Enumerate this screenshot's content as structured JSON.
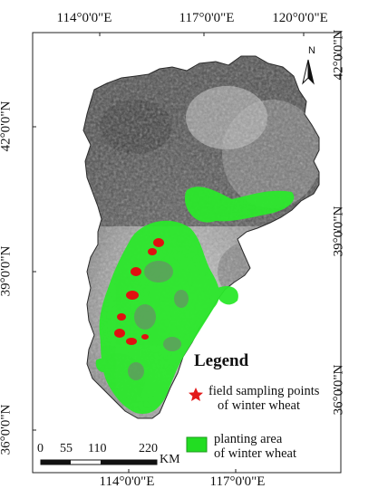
{
  "map": {
    "top_labels": [
      "114°0'0\"E",
      "117°0'0\"E",
      "120°0'0\"E"
    ],
    "bottom_labels": [
      "114°0'0\"E",
      "117°0'0\"E"
    ],
    "left_labels": [
      "42°0'0\"N",
      "39°0'0\"N",
      "36°0'0\"N"
    ],
    "right_labels": [
      "42°0'0\"N",
      "39°0'0\"N",
      "36°0'0\"N"
    ],
    "north_arrow": "N"
  },
  "legend": {
    "title": "Legend",
    "items": [
      {
        "icon": "red-star-icon",
        "color": "#e31b1b",
        "line1": "field sampling points",
        "line2": "of winter wheat"
      },
      {
        "icon": "green-square-icon",
        "color": "#22dd22",
        "line1": "planting area",
        "line2": "of winter wheat"
      }
    ]
  },
  "scale_bar": {
    "ticks": [
      "0",
      "55",
      "110",
      "220"
    ],
    "unit": "KM"
  },
  "colors": {
    "wheat": "#2be82b",
    "sample": "#e01010",
    "land_dark": "#3f3f3f",
    "land_light": "#bdbdbd"
  }
}
